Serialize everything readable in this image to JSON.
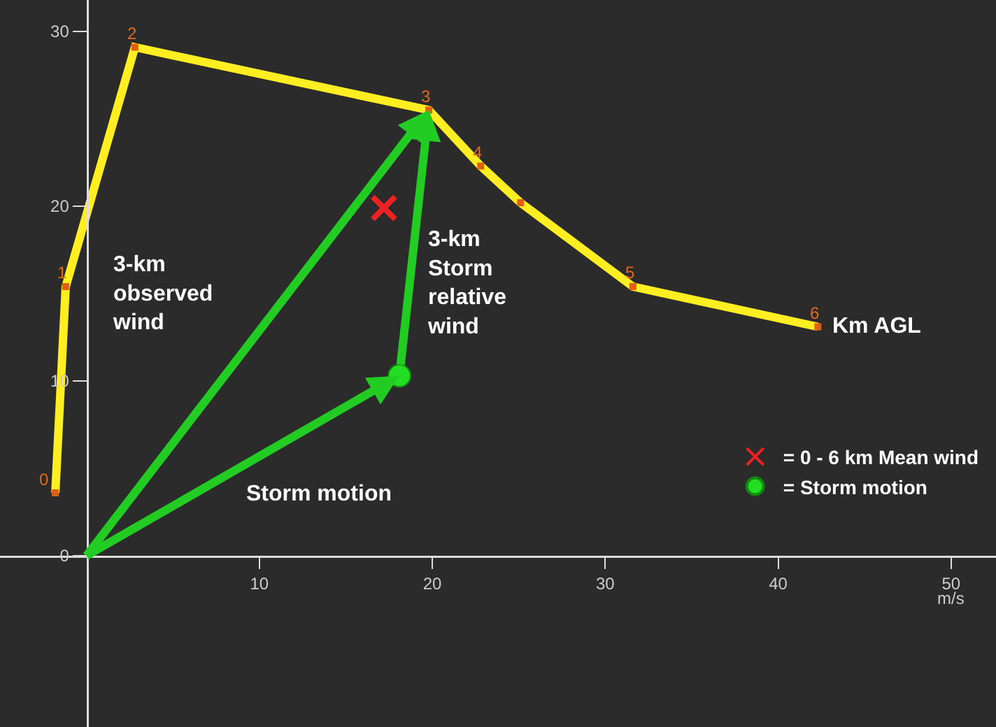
{
  "chart_data": {
    "type": "line",
    "xlabel": "m/s",
    "xlim": [
      -5,
      52.6
    ],
    "ylim": [
      -9.8,
      31.8
    ],
    "xticks": [
      10,
      20,
      30,
      40,
      50
    ],
    "yticks": [
      0,
      10,
      20,
      30
    ],
    "grid": false,
    "legend": "bottom right",
    "series": [
      {
        "color": "#ffee22",
        "marker": "square",
        "x": [
          -1.8,
          -1.2,
          2.8,
          19.8,
          22.8,
          25.1,
          31.6,
          42.3
        ],
        "values": [
          3.6,
          15.4,
          29.1,
          25.5,
          22.3,
          20.2,
          15.4,
          13.1
        ]
      },
      {
        "type": "scatter",
        "name": "= 0 - 6 km Mean wind",
        "color": "#ee2222",
        "marker": "cross",
        "x": [
          17.2
        ],
        "values": [
          19.9
        ]
      },
      {
        "type": "scatter",
        "name": "= Storm motion",
        "color": "#22dd22",
        "marker": "circle",
        "x": [
          18.1
        ],
        "values": [
          10.3
        ]
      }
    ],
    "annotations": [
      {
        "text": "0",
        "x": -1.8,
        "y": 3.6
      },
      {
        "text": "1",
        "x": -1.2,
        "y": 15.4
      },
      {
        "text": "2",
        "x": 2.8,
        "y": 29.1
      },
      {
        "text": "3",
        "x": 19.8,
        "y": 25.5
      },
      {
        "text": "4",
        "x": 22.8,
        "y": 22.3
      },
      {
        "text": "5",
        "x": 31.6,
        "y": 15.4
      },
      {
        "text": "6",
        "x": 42.3,
        "y": 13.1
      },
      {
        "text": "Km AGL",
        "x": 42.3,
        "y": 13.1
      },
      "3-km\nobserved\nwind",
      "3-km\nStorm\nrelative\nwind",
      "Storm motion"
    ]
  }
}
